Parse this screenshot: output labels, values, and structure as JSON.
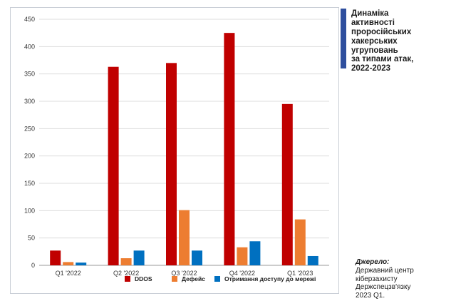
{
  "chart_data": {
    "type": "bar",
    "title": "Динаміка\nактивності\nпроросійських\nхакерських\nугруповань\nза типами атак,\n2022-2023",
    "categories": [
      "Q1 '2022",
      "Q2 '2022",
      "Q3 '2022",
      "Q4 '2022",
      "Q1 '2023"
    ],
    "series": [
      {
        "name": "DDOS",
        "color": "#c00000",
        "values": [
          27,
          363,
          370,
          425,
          295
        ]
      },
      {
        "name": "Дефейс",
        "color": "#ed7d31",
        "values": [
          6,
          13,
          101,
          33,
          84
        ]
      },
      {
        "name": "Отримання доступу до мережі",
        "color": "#0070c0",
        "values": [
          5,
          27,
          27,
          44,
          17
        ]
      }
    ],
    "yticks": [
      0,
      50,
      100,
      150,
      200,
      250,
      300,
      350,
      400,
      450
    ],
    "ylim": [
      0,
      450
    ],
    "grid": true,
    "legend": "bottom"
  },
  "source": {
    "label": "Джерело:",
    "text": "Державний центр\nкіберзахисту\nДержспецзв'язку\n2023 Q1."
  }
}
